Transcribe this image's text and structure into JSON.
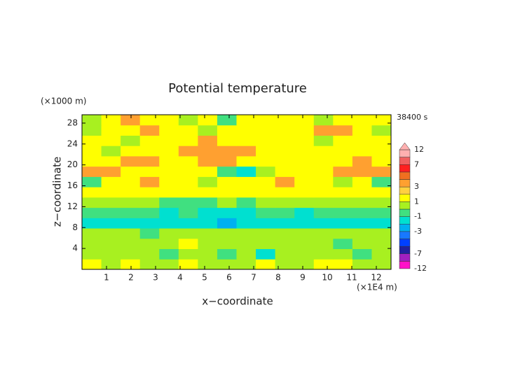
{
  "chart_data": {
    "type": "heatmap",
    "title": "Potential temperature",
    "subtitle": "38400 s",
    "x_label": "x−coordinate",
    "y_label": "z−coordinate",
    "x_unit": "(×1E4 m)",
    "y_unit": "(×1000 m)",
    "xlim": [
      0,
      12.6
    ],
    "xticks": [
      1,
      2,
      3,
      4,
      5,
      6,
      7,
      8,
      9,
      10,
      11,
      12
    ],
    "ylim": [
      0,
      29.6
    ],
    "yticks": [
      4,
      8,
      12,
      16,
      20,
      24,
      28
    ],
    "values": [
      [
        1.5,
        0.5,
        1.5,
        0.5,
        0.5,
        1.5,
        0.5,
        0.5,
        0.5,
        1.5,
        0.5,
        0.5,
        1.5,
        1.5,
        0.5,
        0.5
      ],
      [
        0.5,
        0.5,
        0.5,
        0.5,
        -0.5,
        0.5,
        0.5,
        -0.5,
        0.5,
        -1.5,
        0.5,
        0.5,
        0.5,
        0.5,
        -0.5,
        0.5
      ],
      [
        0.5,
        0.5,
        0.5,
        0.5,
        0.5,
        1.5,
        0.5,
        0.5,
        0.5,
        0.5,
        0.5,
        0.5,
        0.5,
        -0.5,
        0.5,
        0.5
      ],
      [
        0.5,
        0.5,
        0.5,
        -0.5,
        0.5,
        0.5,
        0.5,
        0.5,
        0.5,
        0.5,
        0.5,
        0.5,
        0.5,
        0.5,
        0.5,
        0.5
      ],
      [
        -1.5,
        -1.5,
        -1.5,
        -1.5,
        -1.5,
        -1.5,
        -1.5,
        -2.5,
        -1.5,
        -1.5,
        -1.5,
        -1.5,
        -1.5,
        -1.5,
        -1.5,
        -1.5
      ],
      [
        -0.5,
        -0.5,
        -0.5,
        -0.5,
        -1.5,
        -0.5,
        -1.5,
        -1.5,
        -1.5,
        -0.5,
        -0.5,
        -1.5,
        -0.5,
        -0.5,
        -0.5,
        -0.5
      ],
      [
        0.5,
        0.5,
        0.5,
        0.5,
        -0.5,
        -0.5,
        -0.5,
        0.5,
        -0.5,
        0.5,
        0.5,
        0.5,
        0.5,
        0.5,
        0.5,
        0.5
      ],
      [
        1.5,
        1.5,
        1.5,
        1.5,
        1.5,
        1.5,
        1.5,
        1.5,
        1.5,
        1.5,
        1.5,
        1.5,
        1.5,
        1.5,
        1.5,
        1.5
      ],
      [
        -0.5,
        1.5,
        1.5,
        3.5,
        1.5,
        1.5,
        0.5,
        1.5,
        1.5,
        1.5,
        3.5,
        1.5,
        1.5,
        0.5,
        1.5,
        -0.5
      ],
      [
        3.5,
        3.5,
        1.5,
        1.5,
        1.5,
        1.5,
        1.5,
        -0.5,
        -1.5,
        0.5,
        1.5,
        1.5,
        1.5,
        3.5,
        3.5,
        3.5
      ],
      [
        1.5,
        1.5,
        3.5,
        3.5,
        1.5,
        1.5,
        3.5,
        3.5,
        1.5,
        1.5,
        1.5,
        1.5,
        1.5,
        1.5,
        3.5,
        1.5
      ],
      [
        1.5,
        0.5,
        1.5,
        1.5,
        1.5,
        3.5,
        3.5,
        3.5,
        3.5,
        1.5,
        1.5,
        1.5,
        1.5,
        1.5,
        1.5,
        1.5
      ],
      [
        1.5,
        1.5,
        0.5,
        1.5,
        1.5,
        1.5,
        3.5,
        1.5,
        1.5,
        1.5,
        1.5,
        1.5,
        0.5,
        1.5,
        1.5,
        1.5
      ],
      [
        0.5,
        1.5,
        1.5,
        3.5,
        1.5,
        1.5,
        0.5,
        1.5,
        1.5,
        1.5,
        1.5,
        1.5,
        3.5,
        3.5,
        1.5,
        0.5
      ],
      [
        0.5,
        1.5,
        3.5,
        1.5,
        1.5,
        0.5,
        1.5,
        -0.5,
        1.5,
        1.5,
        1.5,
        1.5,
        0.5,
        1.5,
        1.5,
        1.5
      ]
    ],
    "colorbar": {
      "levels": [
        -12,
        -9,
        -7,
        -5,
        -4,
        -3,
        -2,
        -1,
        0,
        1,
        2,
        3,
        4,
        5,
        7,
        9,
        12
      ],
      "colors": [
        "#ff10c8",
        "#a020c0",
        "#2020a0",
        "#0040ff",
        "#1878ff",
        "#00b0f0",
        "#00e0d0",
        "#40e080",
        "#a8f020",
        "#ffff00",
        "#ffd040",
        "#ffa030",
        "#f07020",
        "#ff2020",
        "#f06060",
        "#ffb0b0"
      ],
      "ticks": [
        12,
        7,
        3,
        1,
        -1,
        -3,
        -7,
        -12
      ]
    }
  }
}
